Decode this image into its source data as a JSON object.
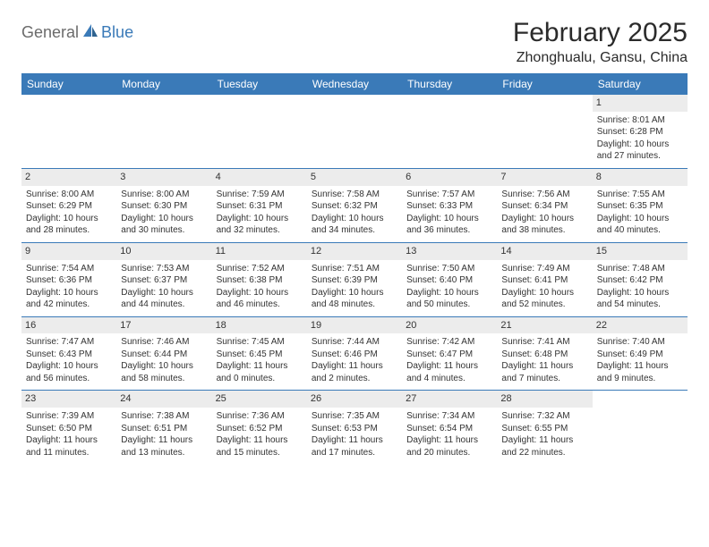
{
  "brand": {
    "text1": "General",
    "text2": "Blue"
  },
  "title": "February 2025",
  "location": "Zhonghualu, Gansu, China",
  "weekdays": [
    "Sunday",
    "Monday",
    "Tuesday",
    "Wednesday",
    "Thursday",
    "Friday",
    "Saturday"
  ],
  "colors": {
    "header_bg": "#3a7ab8",
    "header_text": "#ffffff",
    "daynum_bg": "#ececec",
    "rule": "#3a7ab8",
    "body_text": "#333333",
    "logo_gray": "#6b6b6b",
    "logo_blue": "#3a7ab8",
    "page_bg": "#ffffff"
  },
  "fonts": {
    "title_size_pt": 22,
    "location_size_pt": 12,
    "weekday_size_pt": 9,
    "cell_size_pt": 7.5,
    "daynum_size_pt": 8
  },
  "layout": {
    "columns": 7,
    "rows": 5,
    "first_weekday_index": 6,
    "days_in_month": 28
  },
  "days": [
    {
      "n": 1,
      "sunrise": "8:01 AM",
      "sunset": "6:28 PM",
      "daylight": "10 hours and 27 minutes."
    },
    {
      "n": 2,
      "sunrise": "8:00 AM",
      "sunset": "6:29 PM",
      "daylight": "10 hours and 28 minutes."
    },
    {
      "n": 3,
      "sunrise": "8:00 AM",
      "sunset": "6:30 PM",
      "daylight": "10 hours and 30 minutes."
    },
    {
      "n": 4,
      "sunrise": "7:59 AM",
      "sunset": "6:31 PM",
      "daylight": "10 hours and 32 minutes."
    },
    {
      "n": 5,
      "sunrise": "7:58 AM",
      "sunset": "6:32 PM",
      "daylight": "10 hours and 34 minutes."
    },
    {
      "n": 6,
      "sunrise": "7:57 AM",
      "sunset": "6:33 PM",
      "daylight": "10 hours and 36 minutes."
    },
    {
      "n": 7,
      "sunrise": "7:56 AM",
      "sunset": "6:34 PM",
      "daylight": "10 hours and 38 minutes."
    },
    {
      "n": 8,
      "sunrise": "7:55 AM",
      "sunset": "6:35 PM",
      "daylight": "10 hours and 40 minutes."
    },
    {
      "n": 9,
      "sunrise": "7:54 AM",
      "sunset": "6:36 PM",
      "daylight": "10 hours and 42 minutes."
    },
    {
      "n": 10,
      "sunrise": "7:53 AM",
      "sunset": "6:37 PM",
      "daylight": "10 hours and 44 minutes."
    },
    {
      "n": 11,
      "sunrise": "7:52 AM",
      "sunset": "6:38 PM",
      "daylight": "10 hours and 46 minutes."
    },
    {
      "n": 12,
      "sunrise": "7:51 AM",
      "sunset": "6:39 PM",
      "daylight": "10 hours and 48 minutes."
    },
    {
      "n": 13,
      "sunrise": "7:50 AM",
      "sunset": "6:40 PM",
      "daylight": "10 hours and 50 minutes."
    },
    {
      "n": 14,
      "sunrise": "7:49 AM",
      "sunset": "6:41 PM",
      "daylight": "10 hours and 52 minutes."
    },
    {
      "n": 15,
      "sunrise": "7:48 AM",
      "sunset": "6:42 PM",
      "daylight": "10 hours and 54 minutes."
    },
    {
      "n": 16,
      "sunrise": "7:47 AM",
      "sunset": "6:43 PM",
      "daylight": "10 hours and 56 minutes."
    },
    {
      "n": 17,
      "sunrise": "7:46 AM",
      "sunset": "6:44 PM",
      "daylight": "10 hours and 58 minutes."
    },
    {
      "n": 18,
      "sunrise": "7:45 AM",
      "sunset": "6:45 PM",
      "daylight": "11 hours and 0 minutes."
    },
    {
      "n": 19,
      "sunrise": "7:44 AM",
      "sunset": "6:46 PM",
      "daylight": "11 hours and 2 minutes."
    },
    {
      "n": 20,
      "sunrise": "7:42 AM",
      "sunset": "6:47 PM",
      "daylight": "11 hours and 4 minutes."
    },
    {
      "n": 21,
      "sunrise": "7:41 AM",
      "sunset": "6:48 PM",
      "daylight": "11 hours and 7 minutes."
    },
    {
      "n": 22,
      "sunrise": "7:40 AM",
      "sunset": "6:49 PM",
      "daylight": "11 hours and 9 minutes."
    },
    {
      "n": 23,
      "sunrise": "7:39 AM",
      "sunset": "6:50 PM",
      "daylight": "11 hours and 11 minutes."
    },
    {
      "n": 24,
      "sunrise": "7:38 AM",
      "sunset": "6:51 PM",
      "daylight": "11 hours and 13 minutes."
    },
    {
      "n": 25,
      "sunrise": "7:36 AM",
      "sunset": "6:52 PM",
      "daylight": "11 hours and 15 minutes."
    },
    {
      "n": 26,
      "sunrise": "7:35 AM",
      "sunset": "6:53 PM",
      "daylight": "11 hours and 17 minutes."
    },
    {
      "n": 27,
      "sunrise": "7:34 AM",
      "sunset": "6:54 PM",
      "daylight": "11 hours and 20 minutes."
    },
    {
      "n": 28,
      "sunrise": "7:32 AM",
      "sunset": "6:55 PM",
      "daylight": "11 hours and 22 minutes."
    }
  ],
  "labels": {
    "sunrise_prefix": "Sunrise: ",
    "sunset_prefix": "Sunset: ",
    "daylight_prefix": "Daylight: "
  }
}
